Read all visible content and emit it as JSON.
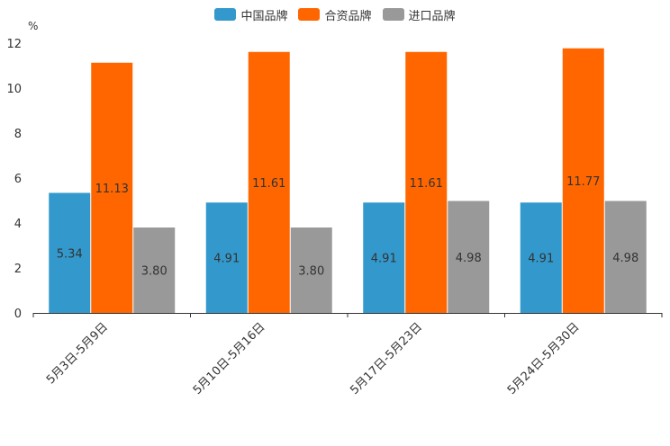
{
  "chart_data": {
    "type": "bar",
    "unit": "%",
    "categories": [
      "5月3日-5月9日",
      "5月10日-5月16日",
      "5月17日-5月23日",
      "5月24日-5月30日"
    ],
    "series": [
      {
        "name": "中国品牌",
        "color": "#3399cc",
        "values": [
          5.34,
          4.91,
          4.91,
          4.91
        ],
        "labels": [
          "5.34",
          "4.91",
          "4.91",
          "4.91"
        ]
      },
      {
        "name": "合资品牌",
        "color": "#ff6600",
        "values": [
          11.13,
          11.61,
          11.61,
          11.77
        ],
        "labels": [
          "11.13",
          "11.61",
          "11.61",
          "11.77"
        ]
      },
      {
        "name": "进口品牌",
        "color": "#999999",
        "values": [
          3.8,
          3.8,
          4.98,
          4.98
        ],
        "labels": [
          "3.80",
          "3.80",
          "4.98",
          "4.98"
        ]
      }
    ],
    "ylim": [
      0,
      12
    ],
    "yticks": [
      "0",
      "2",
      "4",
      "6",
      "8",
      "10",
      "12"
    ],
    "legend_position": "top-center",
    "grid": false
  }
}
